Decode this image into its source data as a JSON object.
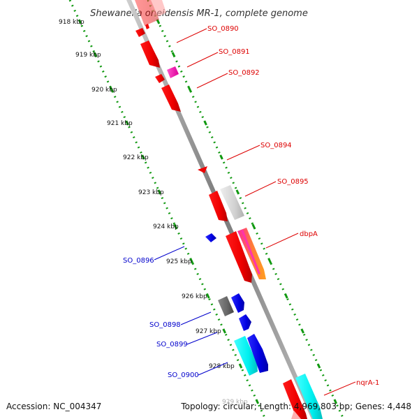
{
  "title": "Shewanella oneidensis MR-1, complete genome",
  "footer": {
    "accession": "Accession: NC_004347",
    "topology": "Topology: circular; Length: 4,969,803 bp; Genes: 4,448"
  },
  "scale_labels": [
    "918 kbp",
    "919 kbp",
    "920 kbp",
    "921 kbp",
    "922 kbp",
    "923 kbp",
    "924 kbp",
    "925 kbp",
    "926 kbp",
    "927 kbp",
    "928 kbp",
    "929 kbp"
  ],
  "gene_labels": {
    "so0890": "SO_0890",
    "so0891": "SO_0891",
    "so0892": "SO_0892",
    "so0894": "SO_0894",
    "so0895": "SO_0895",
    "dbpa": "dbpA",
    "nqra1": "nqrA-1",
    "so0896": "SO_0896",
    "so0898": "SO_0898",
    "so0899": "SO_0899",
    "so0900": "SO_0900"
  },
  "colors": {
    "forward_gene": "#ff0000",
    "reverse_gene": "#0000ee",
    "backbone": "#999999",
    "scale_dots": "#119911",
    "label_forward": "#dd0000",
    "label_reverse": "#0000cc"
  }
}
